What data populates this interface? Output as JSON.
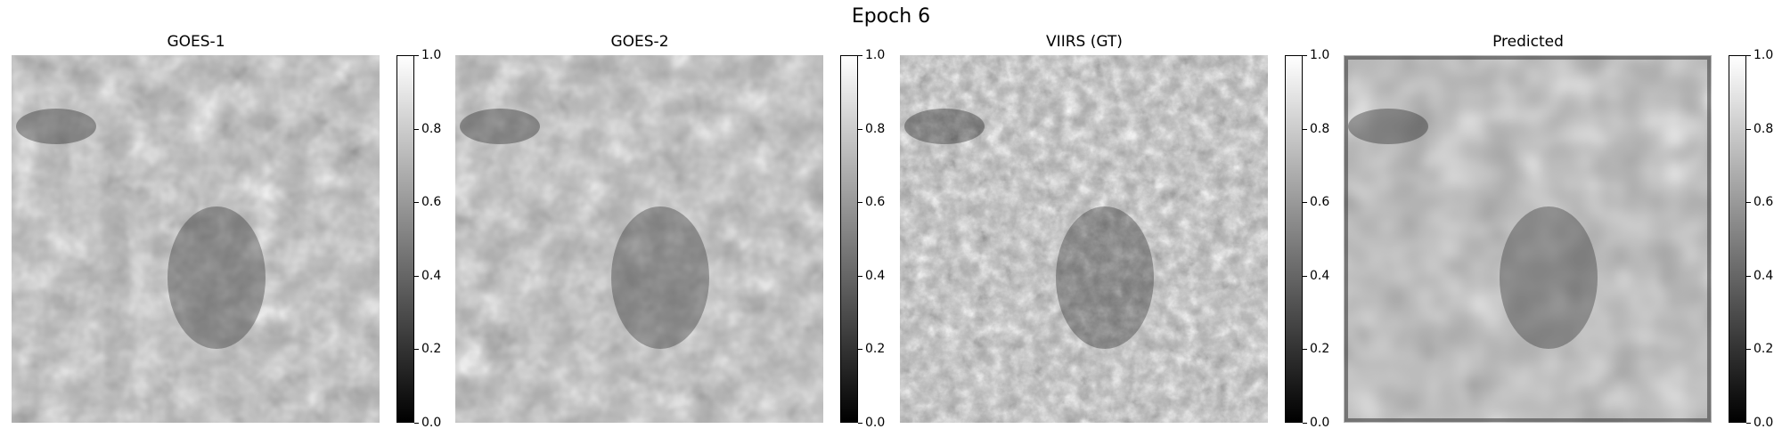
{
  "figure": {
    "title": "Epoch 6"
  },
  "panels": [
    {
      "title": "GOES-1",
      "texture": "blocky",
      "noise_scale": 0.035
    },
    {
      "title": "GOES-2",
      "texture": "blocky",
      "noise_scale": 0.035
    },
    {
      "title": "VIIRS (GT)",
      "texture": "fine",
      "noise_scale": 0.08
    },
    {
      "title": "Predicted",
      "texture": "smooth",
      "noise_scale": 0.02
    }
  ],
  "colorbar": {
    "colormap": "gray",
    "vmin": 0.0,
    "vmax": 1.0,
    "ticks": [
      "0.0",
      "0.2",
      "0.4",
      "0.6",
      "0.8",
      "1.0"
    ]
  }
}
